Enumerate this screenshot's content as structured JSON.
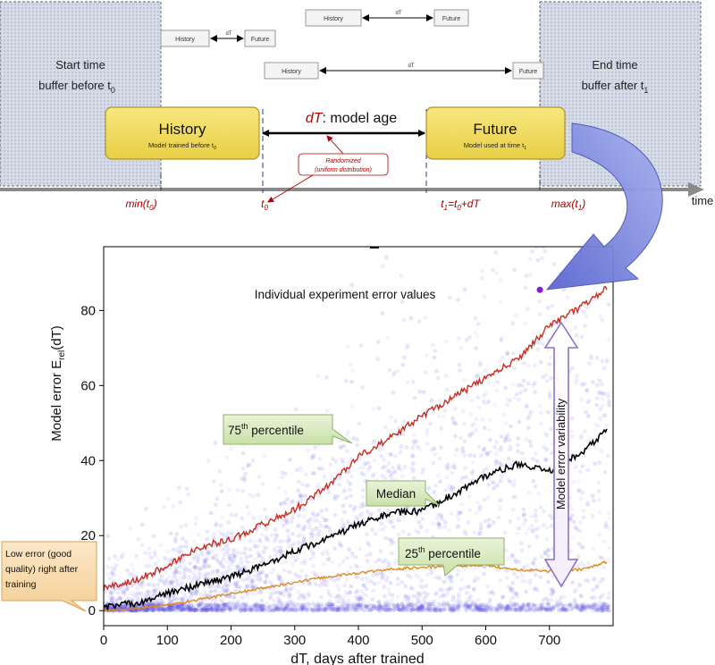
{
  "diagram": {
    "start_buffer": {
      "line1": "Start time",
      "line2": "buffer before t",
      "sub": "0"
    },
    "end_buffer": {
      "line1": "End time",
      "line2": "buffer after t",
      "sub": "1"
    },
    "mini_rows": [
      {
        "history": "History",
        "dt": "dT",
        "future": "Future"
      },
      {
        "history": "History",
        "dt": "dT",
        "future": "Future"
      },
      {
        "history": "History",
        "dt": "dT",
        "future": "Future"
      }
    ],
    "history_box": {
      "title": "History",
      "subtitle": "Model trained before t",
      "sub": "0"
    },
    "future_box": {
      "title": "Future",
      "subtitle": "Model used at time t",
      "sub": "1"
    },
    "model_age": {
      "italic": "dT",
      "rest": ": model age"
    },
    "randomized_note": {
      "line1": "Randomized",
      "line2": "(uniform distribution)"
    },
    "timeline_label": "time",
    "axis_labels": {
      "min": {
        "text": "min(t",
        "sub": "0",
        "close": ")"
      },
      "t0": {
        "text": "t",
        "sub": "0"
      },
      "t1": {
        "a": "t",
        "s1": "1",
        "b": "=t",
        "s2": "0",
        "c": "+dT"
      },
      "max": {
        "text": "max(t",
        "sub": "1",
        "close": ")"
      }
    },
    "colors": {
      "box_fill": "#f2dc5c",
      "buffer_fill": "#d3d9e6",
      "label_red": "#b00000",
      "arrow_blue": "#7383d9"
    }
  },
  "chart_data": {
    "type": "scatter",
    "xlabel": "dT, days after trained",
    "ylabel": "Model error E",
    "ylabel_sub": "rel",
    "ylabel_tail": "(dT)",
    "xlim": [
      0,
      800
    ],
    "ylim": [
      -4,
      97
    ],
    "xticks": [
      0,
      100,
      200,
      300,
      400,
      500,
      600,
      700
    ],
    "yticks": [
      0,
      20,
      40,
      60,
      80
    ],
    "scatter_color": "#5a4fe0",
    "highlight_point": {
      "x": 685,
      "y": 85.5
    },
    "series": [
      {
        "name": "75th percentile",
        "color": "#cc2b1f",
        "x": [
          0,
          50,
          100,
          150,
          200,
          250,
          300,
          350,
          400,
          450,
          500,
          550,
          600,
          650,
          700,
          750,
          790
        ],
        "values": [
          6,
          8,
          12,
          17,
          19,
          23,
          27,
          33,
          41,
          46,
          52,
          57,
          62,
          67,
          76,
          81,
          86
        ]
      },
      {
        "name": "Median",
        "color": "#000000",
        "x": [
          0,
          50,
          100,
          150,
          200,
          250,
          300,
          350,
          400,
          450,
          500,
          550,
          600,
          650,
          700,
          750,
          790
        ],
        "values": [
          1,
          2,
          4.5,
          7,
          9,
          12,
          16,
          19,
          23,
          26,
          26.5,
          31,
          36,
          39,
          37,
          42,
          48
        ]
      },
      {
        "name": "25th percentile",
        "color": "#e08a1e",
        "x": [
          0,
          50,
          100,
          150,
          200,
          250,
          300,
          350,
          400,
          450,
          500,
          550,
          600,
          650,
          700,
          750,
          790
        ],
        "values": [
          0,
          0.5,
          1.5,
          3,
          4.5,
          6,
          7.5,
          9,
          10,
          11,
          11.5,
          12,
          12,
          11,
          10.5,
          11,
          13
        ]
      }
    ],
    "annotations": {
      "title_note": "Individual experiment error values",
      "p75": {
        "pre": "75",
        "sup": "th",
        "post": " percentile"
      },
      "median": "Median",
      "p25": {
        "pre": "25",
        "sup": "th",
        "post": " percentile"
      },
      "variability": "Model   error variability",
      "low_error": [
        "Low error (good",
        "quality) right after",
        "training"
      ]
    }
  }
}
